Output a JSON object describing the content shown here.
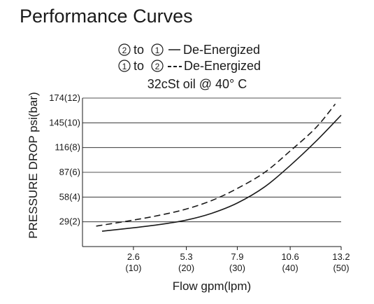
{
  "chart_data": {
    "type": "line",
    "title": "Performance Curves",
    "legend": [
      {
        "from": "2",
        "to": "1",
        "connector": "to",
        "style": "solid",
        "label": "De-Energized"
      },
      {
        "from": "1",
        "to": "2",
        "connector": "to",
        "style": "dashed",
        "label": "De-Energized"
      }
    ],
    "condition": "32cSt oil @ 40° C",
    "xlabel": "Flow gpm(lpm)",
    "ylabel": "PRESSURE DROP psi(bar)",
    "x_ticks": [
      {
        "value": 2.6,
        "label": "2.6",
        "sublabel": "(10)"
      },
      {
        "value": 5.3,
        "label": "5.3",
        "sublabel": "(20)"
      },
      {
        "value": 7.9,
        "label": "7.9",
        "sublabel": "(30)"
      },
      {
        "value": 10.6,
        "label": "10.6",
        "sublabel": "(40)"
      },
      {
        "value": 13.2,
        "label": "13.2",
        "sublabel": "(50)"
      }
    ],
    "y_ticks": [
      {
        "value": 29,
        "label": "29(2)"
      },
      {
        "value": 58,
        "label": "58(4)"
      },
      {
        "value": 87,
        "label": "87(6)"
      },
      {
        "value": 116,
        "label": "116(8)"
      },
      {
        "value": 145,
        "label": "145(10)"
      },
      {
        "value": 174,
        "label": "174(12)"
      }
    ],
    "xlim": [
      0,
      13.2
    ],
    "ylim": [
      0,
      174
    ],
    "grid": "horizontal",
    "series": [
      {
        "style": "solid",
        "x": [
          1.0,
          2.6,
          4.0,
          5.3,
          6.6,
          7.9,
          9.3,
          10.6,
          11.9,
          13.2
        ],
        "y": [
          18,
          22,
          26,
          31,
          39,
          51,
          70,
          95,
          123,
          154
        ]
      },
      {
        "style": "dashed",
        "x": [
          0.7,
          2.6,
          4.0,
          5.3,
          6.6,
          7.9,
          9.3,
          10.6,
          11.9,
          12.9
        ],
        "y": [
          24,
          31,
          37,
          44,
          54,
          68,
          87,
          112,
          139,
          167
        ]
      }
    ]
  }
}
